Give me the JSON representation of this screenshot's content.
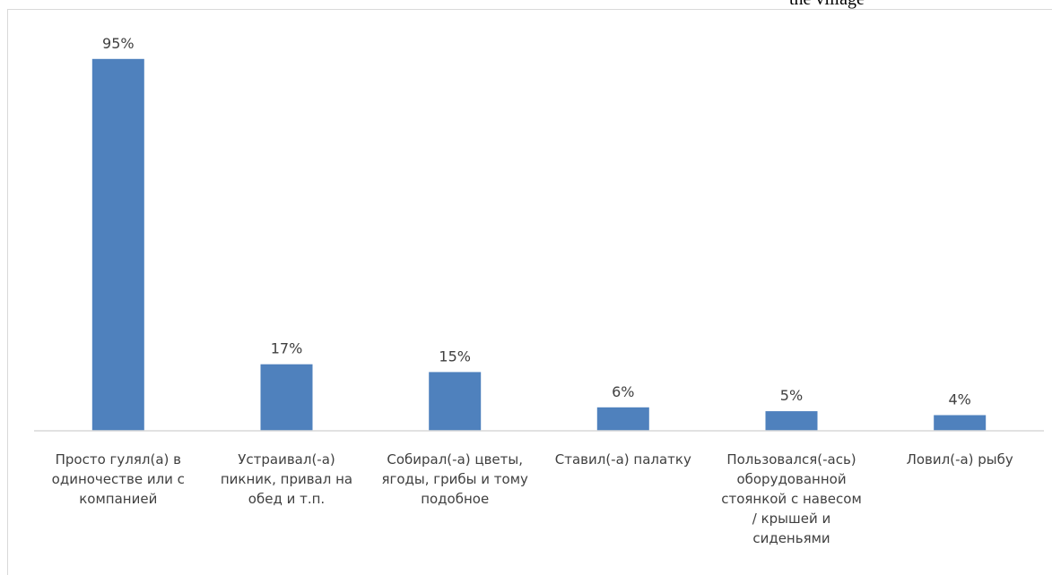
{
  "note": "the village",
  "chart_data": {
    "type": "bar",
    "categories": [
      [
        "Просто гулял(а) в",
        "одиночестве или с",
        "компанией"
      ],
      [
        "Устраивал(-а)",
        "пикник, привал на",
        "обед и т.п."
      ],
      [
        "Собирал(-а) цветы,",
        "ягоды, грибы и тому",
        "подобное"
      ],
      [
        "Ставил(-а) палатку"
      ],
      [
        "Пользовался(-ась)",
        "оборудованной",
        "стоянкой с навесом",
        "/ крышей и",
        "сиденьями"
      ],
      [
        "Ловил(-а) рыбу"
      ]
    ],
    "values": [
      95,
      17,
      15,
      6,
      5,
      4
    ],
    "value_labels": [
      "95%",
      "17%",
      "15%",
      "6%",
      "5%",
      "4%"
    ],
    "ylim": [
      0,
      100
    ],
    "grid": false,
    "colors": {
      "bar": "#4f81bd",
      "axis": "#d9d9d9",
      "text": "#404040"
    }
  }
}
